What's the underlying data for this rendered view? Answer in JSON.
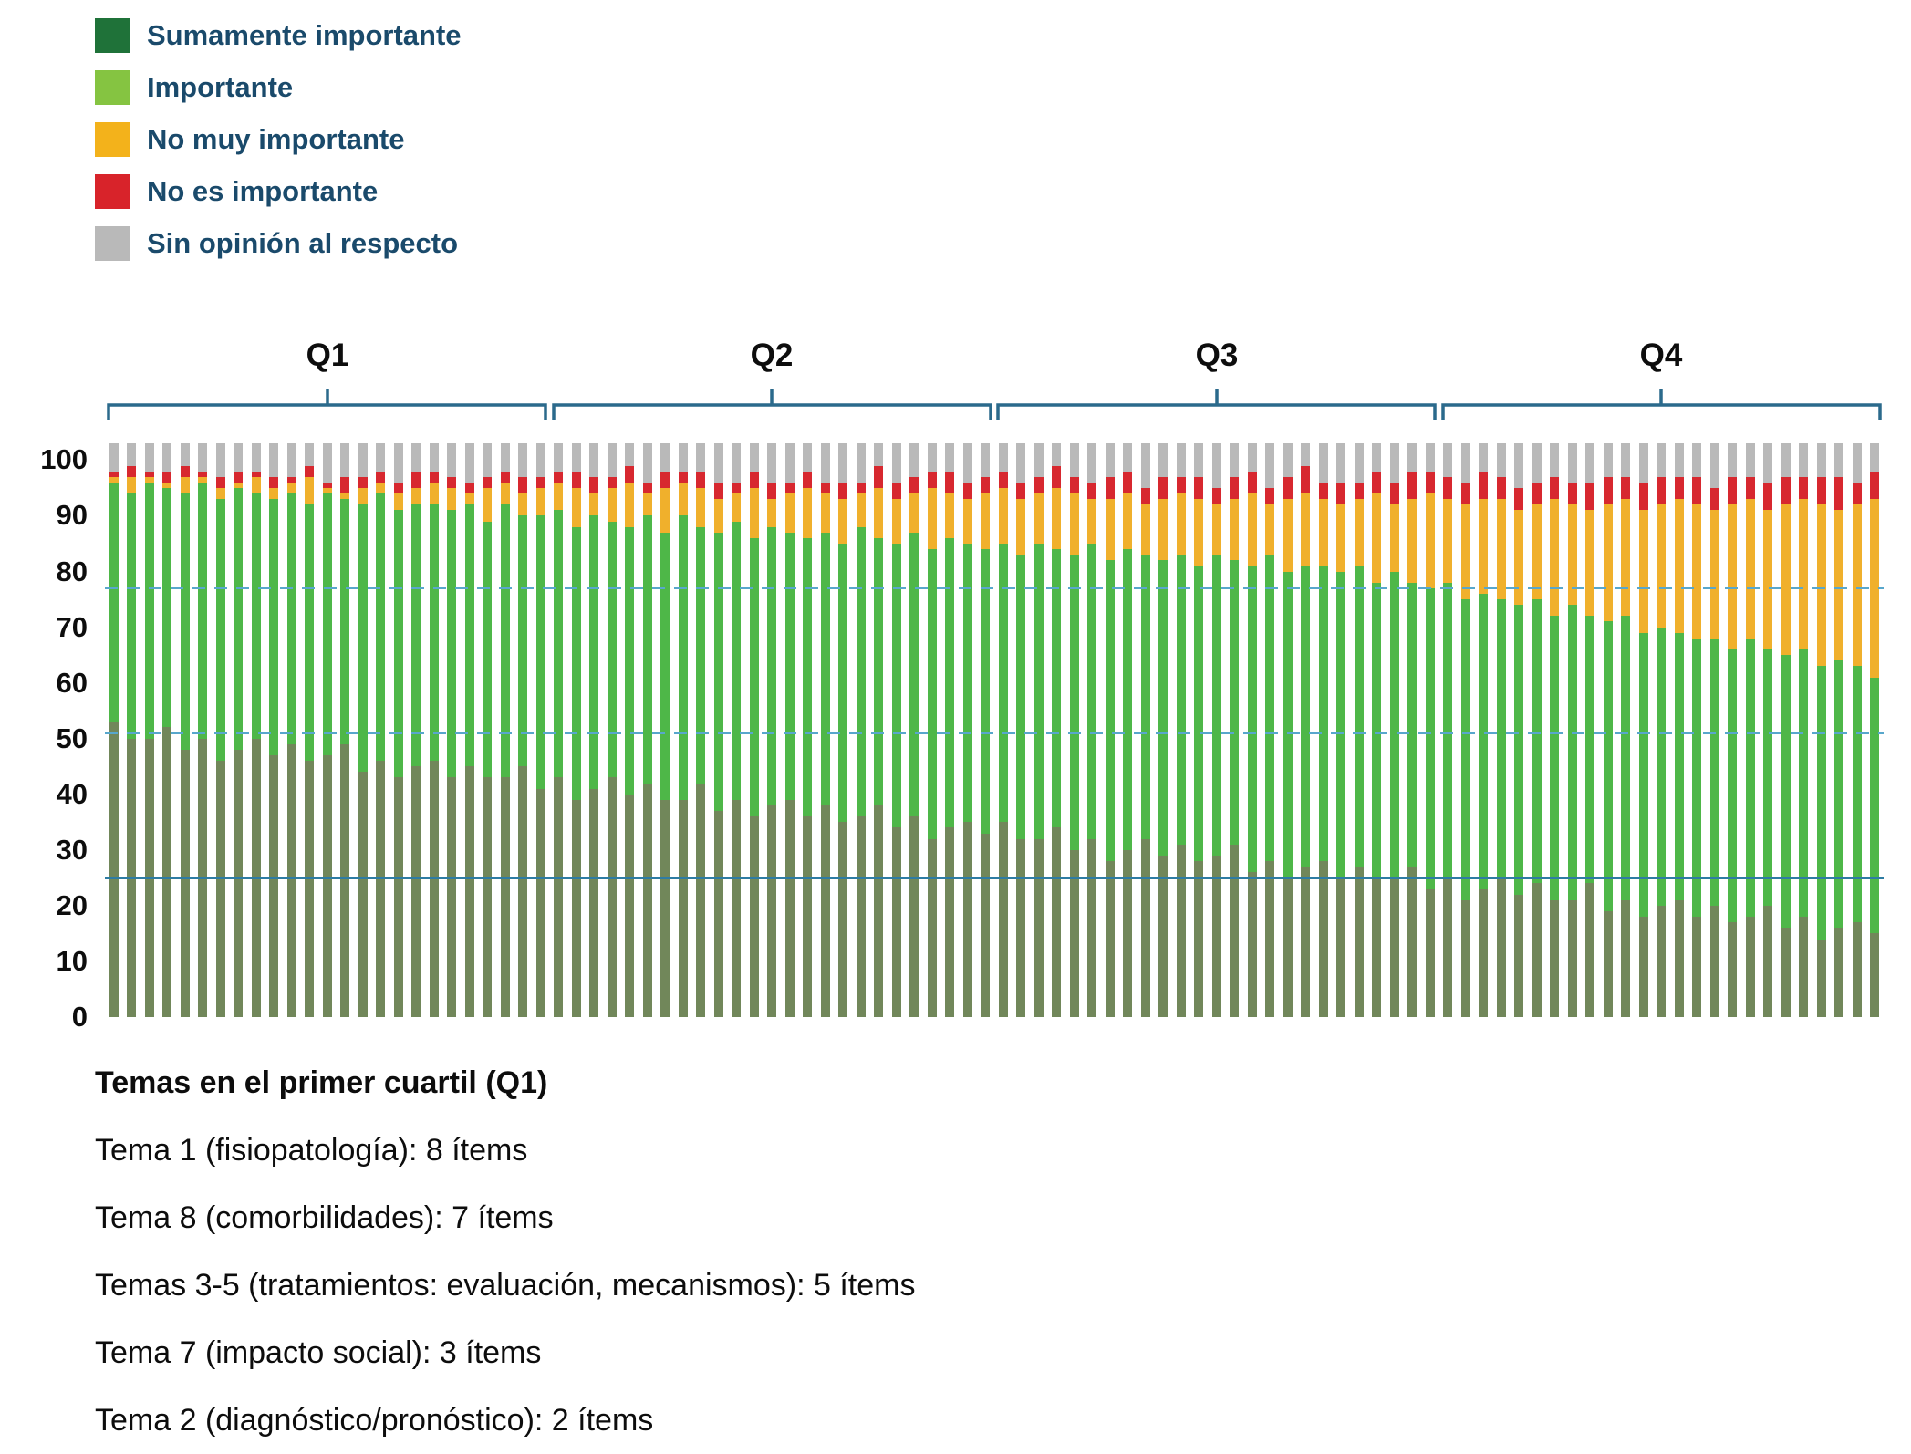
{
  "legend": {
    "items": [
      {
        "label": "Sumamente importante",
        "color": "#1f7239"
      },
      {
        "label": "Importante",
        "color": "#85c441"
      },
      {
        "label": "No muy importante",
        "color": "#f3b21b"
      },
      {
        "label": "No es importante",
        "color": "#d8232a"
      },
      {
        "label": "Sin opinión al respecto",
        "color": "#b9b9b9"
      }
    ]
  },
  "quartiles": {
    "labels": [
      "Q1",
      "Q2",
      "Q3",
      "Q4"
    ]
  },
  "footnote": {
    "title": "Temas en el primer cuartil (Q1)",
    "lines": [
      "Tema 1 (fisiopatología): 8 ítems",
      "Tema 8 (comorbilidades): 7 ítems",
      "Temas 3-5 (tratamientos: evaluación, mecanismos): 5 ítems",
      "Tema 7 (impacto social): 3 ítems",
      "Tema 2 (diagnóstico/pronóstico): 2 ítems"
    ]
  },
  "chart_data": {
    "type": "bar",
    "stacked": true,
    "orientation": "vertical",
    "title": "",
    "xlabel": "",
    "ylabel": "",
    "n_bars": 100,
    "quartile_size": 25,
    "ylim": [
      0,
      104
    ],
    "yticks": [
      0,
      10,
      20,
      30,
      40,
      50,
      60,
      70,
      80,
      90,
      100
    ],
    "grid": false,
    "legend_position": "top-left",
    "reference_lines": [
      {
        "value": 77,
        "style": "dashed",
        "color": "#58a7cc"
      },
      {
        "value": 51,
        "style": "dashed",
        "color": "#58a7cc"
      },
      {
        "value": 25,
        "style": "solid",
        "color": "#2e7ca3"
      }
    ],
    "series": [
      {
        "name": "Sumamente importante",
        "color": "#71875a",
        "values": [
          53,
          50,
          50,
          52,
          48,
          50,
          46,
          48,
          50,
          47,
          49,
          46,
          47,
          49,
          44,
          46,
          43,
          45,
          46,
          43,
          45,
          43,
          43,
          45,
          41,
          43,
          39,
          41,
          43,
          40,
          42,
          39,
          39,
          42,
          37,
          39,
          36,
          38,
          39,
          36,
          38,
          35,
          36,
          38,
          34,
          36,
          32,
          34,
          35,
          33,
          35,
          32,
          32,
          34,
          30,
          32,
          28,
          30,
          32,
          29,
          31,
          28,
          29,
          31,
          26,
          28,
          25,
          27,
          28,
          25,
          27,
          25,
          25,
          27,
          23,
          25,
          21,
          23,
          25,
          22,
          24,
          21,
          21,
          24,
          19,
          21,
          18,
          20,
          21,
          18,
          20,
          17,
          18,
          20,
          16,
          18,
          14,
          16,
          17,
          15
        ]
      },
      {
        "name": "Importante",
        "color": "#4eb748",
        "values": [
          43,
          44,
          46,
          43,
          46,
          46,
          47,
          47,
          44,
          46,
          45,
          46,
          47,
          44,
          48,
          48,
          48,
          47,
          46,
          48,
          47,
          46,
          49,
          45,
          49,
          48,
          49,
          49,
          46,
          48,
          48,
          48,
          51,
          46,
          50,
          50,
          50,
          50,
          48,
          50,
          49,
          50,
          52,
          48,
          51,
          51,
          52,
          52,
          50,
          51,
          50,
          51,
          53,
          50,
          53,
          53,
          54,
          54,
          51,
          53,
          52,
          53,
          54,
          51,
          55,
          55,
          55,
          54,
          53,
          55,
          54,
          53,
          55,
          51,
          54,
          53,
          54,
          53,
          50,
          52,
          51,
          51,
          53,
          48,
          52,
          51,
          51,
          50,
          48,
          50,
          48,
          49,
          50,
          46,
          49,
          48,
          49,
          48,
          46,
          46
        ]
      },
      {
        "name": "No muy importante",
        "color": "#f0b02c",
        "values": [
          1,
          3,
          1,
          1,
          3,
          1,
          2,
          1,
          3,
          2,
          2,
          5,
          1,
          1,
          3,
          2,
          3,
          3,
          4,
          4,
          2,
          6,
          4,
          4,
          5,
          5,
          7,
          4,
          6,
          8,
          4,
          8,
          6,
          7,
          6,
          5,
          9,
          5,
          7,
          9,
          7,
          8,
          6,
          9,
          8,
          7,
          11,
          8,
          8,
          10,
          10,
          10,
          9,
          11,
          11,
          8,
          11,
          10,
          9,
          11,
          11,
          12,
          9,
          11,
          13,
          9,
          13,
          13,
          12,
          12,
          12,
          16,
          12,
          15,
          17,
          15,
          17,
          17,
          18,
          17,
          17,
          21,
          18,
          19,
          21,
          21,
          22,
          22,
          24,
          24,
          23,
          26,
          25,
          25,
          27,
          27,
          29,
          27,
          29,
          32
        ]
      },
      {
        "name": "No es importante",
        "color": "#d7282f",
        "values": [
          1,
          2,
          1,
          2,
          2,
          1,
          2,
          2,
          1,
          2,
          1,
          2,
          1,
          3,
          2,
          2,
          2,
          3,
          2,
          2,
          2,
          2,
          2,
          3,
          2,
          2,
          3,
          3,
          2,
          3,
          2,
          3,
          2,
          3,
          3,
          2,
          3,
          3,
          2,
          3,
          2,
          3,
          2,
          4,
          3,
          3,
          3,
          4,
          3,
          3,
          3,
          3,
          3,
          4,
          3,
          3,
          4,
          4,
          3,
          4,
          3,
          4,
          3,
          4,
          4,
          3,
          4,
          5,
          3,
          4,
          3,
          4,
          4,
          5,
          4,
          4,
          4,
          5,
          4,
          4,
          4,
          4,
          4,
          5,
          5,
          4,
          5,
          5,
          4,
          5,
          4,
          5,
          4,
          5,
          5,
          4,
          5,
          6,
          4,
          5
        ]
      },
      {
        "name": "Sin opinión al respecto",
        "color": "#b9b9b9",
        "values": [
          5,
          4,
          5,
          5,
          4,
          5,
          6,
          5,
          5,
          6,
          6,
          4,
          7,
          6,
          6,
          5,
          7,
          5,
          5,
          6,
          7,
          6,
          5,
          6,
          6,
          5,
          5,
          6,
          6,
          4,
          7,
          5,
          5,
          5,
          7,
          7,
          5,
          7,
          7,
          5,
          7,
          7,
          7,
          4,
          7,
          6,
          5,
          5,
          7,
          6,
          5,
          7,
          6,
          4,
          6,
          7,
          6,
          5,
          8,
          6,
          6,
          6,
          8,
          6,
          5,
          8,
          6,
          4,
          7,
          7,
          7,
          5,
          7,
          5,
          5,
          6,
          7,
          5,
          6,
          8,
          7,
          6,
          7,
          7,
          6,
          6,
          7,
          6,
          6,
          6,
          8,
          6,
          6,
          7,
          6,
          6,
          6,
          6,
          7,
          5
        ]
      }
    ]
  }
}
